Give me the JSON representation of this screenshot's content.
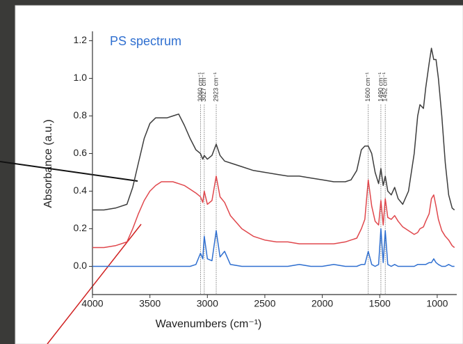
{
  "chart_data": {
    "type": "line",
    "title": "PS spectrum",
    "title_color": "#2f6fd0",
    "x_label": "Wavenumbers (cm⁻¹)",
    "y_label": "Absorbance (a.u.)",
    "xlim": [
      4000,
      830
    ],
    "ylim": [
      -0.15,
      1.25
    ],
    "xticks": [
      4000,
      3500,
      3000,
      2500,
      2000,
      1500,
      1000
    ],
    "yticks": [
      {
        "value": 0,
        "label": "0.0"
      },
      0.2,
      0.4,
      0.6,
      0.8,
      {
        "value": 1,
        "label": "1.0"
      },
      1.2
    ],
    "grid": false,
    "x": [
      4000,
      3900,
      3800,
      3700,
      3650,
      3600,
      3550,
      3500,
      3450,
      3400,
      3350,
      3300,
      3250,
      3200,
      3150,
      3100,
      3060,
      3040,
      3027,
      3000,
      2960,
      2923,
      2890,
      2850,
      2800,
      2700,
      2600,
      2500,
      2400,
      2300,
      2200,
      2100,
      2000,
      1900,
      1800,
      1750,
      1700,
      1660,
      1630,
      1600,
      1570,
      1540,
      1510,
      1490,
      1470,
      1452,
      1430,
      1400,
      1370,
      1340,
      1300,
      1250,
      1200,
      1170,
      1150,
      1120,
      1100,
      1070,
      1050,
      1030,
      1010,
      990,
      960,
      930,
      900,
      870,
      850
    ],
    "series": [
      {
        "color": "#3c3c3c",
        "values": [
          0.3,
          0.3,
          0.31,
          0.33,
          0.42,
          0.55,
          0.68,
          0.76,
          0.79,
          0.79,
          0.79,
          0.8,
          0.81,
          0.75,
          0.68,
          0.62,
          0.6,
          0.57,
          0.59,
          0.57,
          0.59,
          0.65,
          0.59,
          0.56,
          0.55,
          0.53,
          0.51,
          0.5,
          0.49,
          0.48,
          0.48,
          0.47,
          0.46,
          0.45,
          0.45,
          0.46,
          0.51,
          0.62,
          0.64,
          0.64,
          0.6,
          0.5,
          0.44,
          0.52,
          0.43,
          0.48,
          0.4,
          0.38,
          0.42,
          0.36,
          0.33,
          0.4,
          0.6,
          0.8,
          0.86,
          0.84,
          0.95,
          1.08,
          1.16,
          1.1,
          1.1,
          1.0,
          0.8,
          0.55,
          0.38,
          0.31,
          0.3
        ]
      },
      {
        "color": "#e0474c",
        "values": [
          0.1,
          0.1,
          0.11,
          0.13,
          0.2,
          0.28,
          0.35,
          0.4,
          0.43,
          0.45,
          0.45,
          0.45,
          0.44,
          0.43,
          0.41,
          0.39,
          0.37,
          0.34,
          0.4,
          0.33,
          0.35,
          0.48,
          0.37,
          0.34,
          0.27,
          0.2,
          0.16,
          0.14,
          0.13,
          0.13,
          0.12,
          0.12,
          0.12,
          0.12,
          0.13,
          0.14,
          0.15,
          0.2,
          0.25,
          0.46,
          0.32,
          0.24,
          0.22,
          0.35,
          0.22,
          0.36,
          0.26,
          0.25,
          0.27,
          0.24,
          0.21,
          0.19,
          0.17,
          0.18,
          0.2,
          0.21,
          0.24,
          0.28,
          0.36,
          0.38,
          0.32,
          0.25,
          0.19,
          0.16,
          0.14,
          0.11,
          0.1
        ]
      },
      {
        "color": "#2f6fd0",
        "values": [
          0.0,
          0.0,
          0.0,
          0.0,
          0.0,
          0.0,
          0.0,
          0.0,
          0.0,
          0.0,
          0.0,
          0.0,
          0.0,
          0.0,
          0.0,
          0.01,
          0.07,
          0.04,
          0.16,
          0.04,
          0.03,
          0.19,
          0.05,
          0.08,
          0.01,
          0.0,
          0.0,
          0.0,
          0.0,
          0.0,
          0.01,
          0.0,
          0.0,
          0.01,
          0.0,
          0.0,
          0.0,
          0.01,
          0.01,
          0.08,
          0.01,
          0.0,
          0.01,
          0.2,
          0.02,
          0.19,
          0.01,
          0.0,
          0.01,
          0.0,
          0.0,
          0.0,
          0.0,
          0.01,
          0.01,
          0.01,
          0.01,
          0.02,
          0.02,
          0.04,
          0.02,
          0.01,
          0.0,
          0.0,
          0.01,
          0.0,
          0.0
        ]
      }
    ],
    "annotations": [
      {
        "x": 3060,
        "label": "3060 cm⁻¹"
      },
      {
        "x": 3027,
        "label": "3027 cm⁻¹"
      },
      {
        "x": 2923,
        "label": "2923 cm⁻¹"
      },
      {
        "x": 1600,
        "label": "1600 cm⁻¹"
      },
      {
        "x": 1490,
        "label": "1490 cm⁻¹"
      },
      {
        "x": 1452,
        "label": "1452 cm⁻¹"
      }
    ]
  }
}
